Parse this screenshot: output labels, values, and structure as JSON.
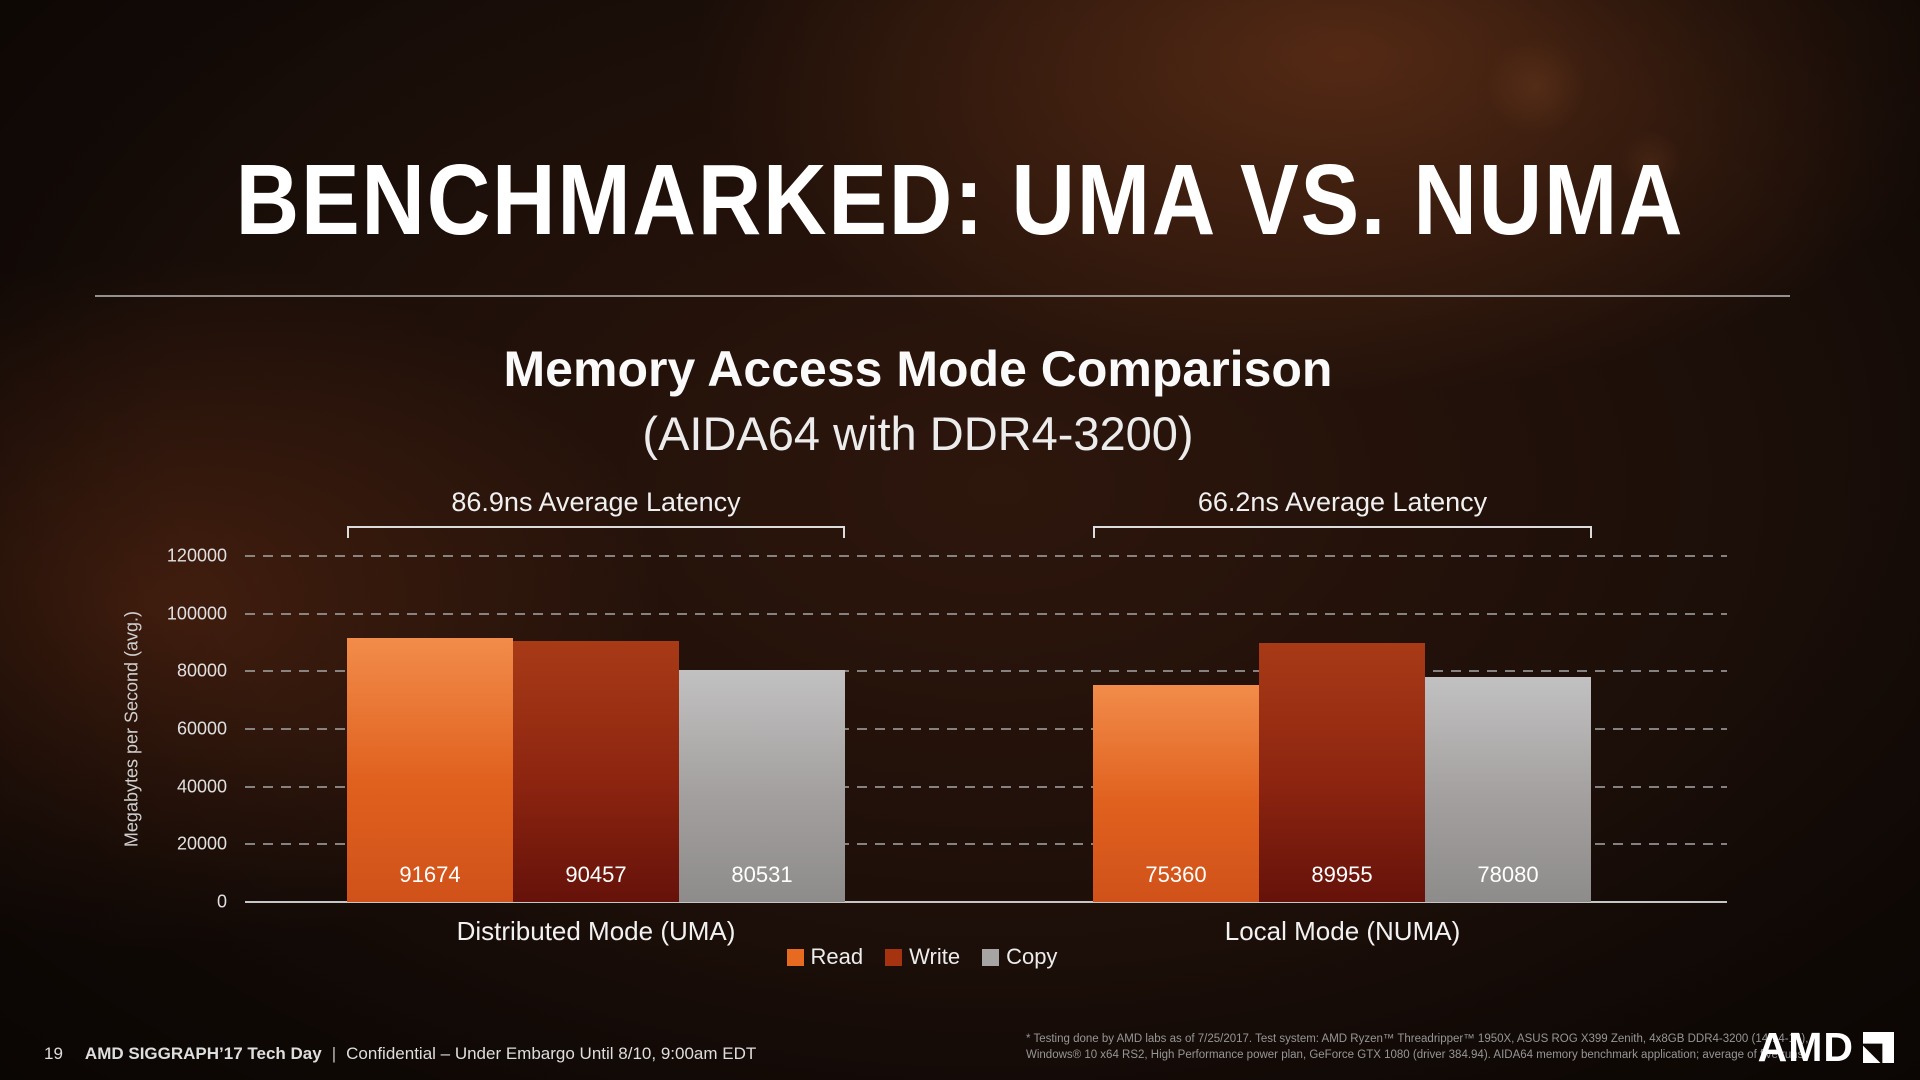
{
  "slide": {
    "title": "BENCHMARKED: UMA VS. NUMA"
  },
  "chart_data": {
    "type": "bar",
    "title": "Memory Access Mode Comparison",
    "subtitle": "(AIDA64 with DDR4-3200)",
    "ylabel": "Megabytes per Second (avg.)",
    "xlabel": "",
    "ylim": [
      0,
      120000
    ],
    "yticks": [
      0,
      20000,
      40000,
      60000,
      80000,
      100000,
      120000
    ],
    "grid": "horizontal-dashed",
    "legend_position": "bottom",
    "categories": [
      "Distributed Mode (UMA)",
      "Local Mode (NUMA)"
    ],
    "series": [
      {
        "name": "Read",
        "color": "#e66a1f",
        "values": [
          91674,
          75360
        ]
      },
      {
        "name": "Write",
        "color": "#a5330f",
        "values": [
          90457,
          89955
        ]
      },
      {
        "name": "Copy",
        "color": "#a6a5a4",
        "values": [
          80531,
          78080
        ]
      }
    ],
    "annotations": [
      {
        "text": "86.9ns Average Latency",
        "group": "Distributed Mode (UMA)"
      },
      {
        "text": "66.2ns Average Latency",
        "group": "Local Mode (NUMA)"
      }
    ]
  },
  "footer": {
    "page_number": "19",
    "event": "AMD SIGGRAPH’17 Tech Day",
    "separator": "|",
    "confidential": "Confidential – Under Embargo Until 8/10, 9:00am EDT"
  },
  "footnote": {
    "line1": "* Testing done by AMD labs as of 7/25/2017. Test system: AMD Ryzen™ Threadripper™ 1950X, ASUS ROG X399 Zenith, 4x8GB DDR4-3200 (14-14-14),",
    "line2": "Windows® 10 x64 RS2, High Performance power plan, GeForce GTX 1080 (driver 384.94). AIDA64 memory benchmark application; average of five runs."
  },
  "logo": {
    "text": "AMD"
  }
}
